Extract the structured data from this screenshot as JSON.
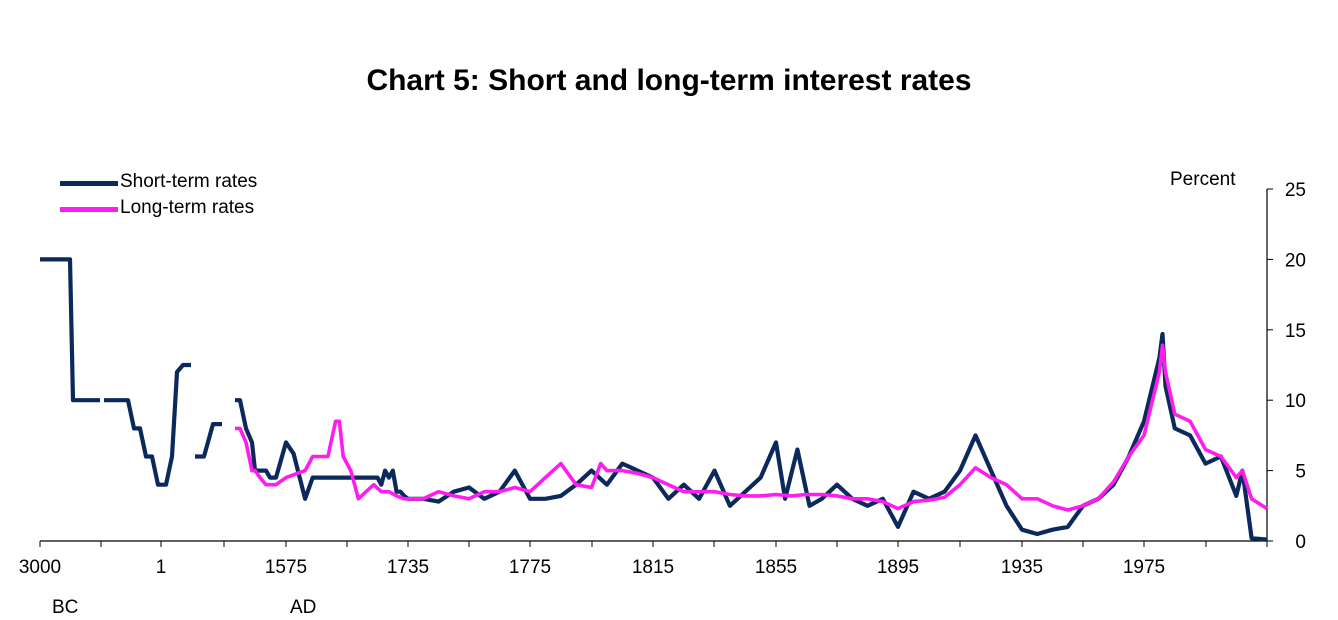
{
  "chart_data": {
    "type": "line",
    "title": "Chart 5: Short and long-term interest rates",
    "unit_label": "Percent",
    "xlabel": "",
    "ylabel": "",
    "ylim": [
      0,
      25
    ],
    "y_ticks": [
      "0",
      "5",
      "10",
      "15",
      "20",
      "25"
    ],
    "y_axis_side": "right",
    "x_ticks": [
      "3000",
      "1",
      "1575",
      "1735",
      "1775",
      "1815",
      "1855",
      "1895",
      "1935",
      "1975"
    ],
    "era_labels": [
      "BC",
      "AD"
    ],
    "grid": false,
    "legend_position": "top-left",
    "colors": {
      "short": "#0b2a5b",
      "long": "#ff1cf0"
    },
    "series": [
      {
        "name": "Short-term rates",
        "segments": [
          [
            [
              "3000 BC",
              20
            ],
            [
              "2800 BC",
              20
            ],
            [
              "2650 BC",
              20
            ],
            [
              "2500 BC",
              10
            ],
            [
              "2200 BC",
              10
            ]
          ],
          [
            [
              "1900 BC",
              10
            ],
            [
              "1700 BC",
              10
            ],
            [
              "1600 BC",
              8
            ],
            [
              "1500 BC",
              8
            ],
            [
              "1400 BC",
              6
            ],
            [
              "1300 BC",
              6
            ],
            [
              "1200 BC",
              4
            ],
            [
              "1100 BC",
              4
            ],
            [
              "1000 BC",
              6
            ],
            [
              "900 BC",
              12
            ],
            [
              "800 BC",
              12.5
            ],
            [
              "700 BC",
              12.5
            ]
          ],
          [
            [
              "AD 300",
              6
            ],
            [
              "AD 400",
              6
            ],
            [
              "AD 500",
              8.3
            ],
            [
              "AD 600",
              8.3
            ]
          ],
          [
            [
              "AD 1200",
              10
            ],
            [
              "1250",
              10
            ],
            [
              "1300",
              8
            ],
            [
              "1350",
              7
            ],
            [
              "1400",
              5
            ],
            [
              "1450",
              5
            ],
            [
              "1500",
              5
            ],
            [
              "1520",
              4.5
            ],
            [
              "1550",
              4.5
            ],
            [
              "1575",
              7
            ],
            [
              "1585",
              6.2
            ],
            [
              "1600",
              3
            ],
            [
              "1610",
              4.5
            ],
            [
              "1620",
              4.5
            ],
            [
              "1640",
              4.5
            ],
            [
              "1660",
              4.5
            ],
            [
              "1680",
              4.5
            ],
            [
              "1695",
              4.5
            ],
            [
              "1700",
              4
            ],
            [
              "1705",
              5
            ],
            [
              "1710",
              4.5
            ],
            [
              "1715",
              5
            ],
            [
              "1720",
              3.5
            ],
            [
              "1725",
              3.5
            ],
            [
              "1730",
              3.2
            ],
            [
              "1735",
              3
            ],
            [
              "1740",
              3
            ],
            [
              "1745",
              2.8
            ],
            [
              "1750",
              3.5
            ],
            [
              "1755",
              3.8
            ],
            [
              "1760",
              3
            ],
            [
              "1765",
              3.5
            ],
            [
              "1770",
              5
            ],
            [
              "1775",
              3
            ],
            [
              "1780",
              3
            ],
            [
              "1785",
              3.2
            ],
            [
              "1790",
              4
            ],
            [
              "1795",
              5
            ],
            [
              "1800",
              4
            ],
            [
              "1805",
              5.5
            ],
            [
              "1810",
              5
            ],
            [
              "1815",
              4.5
            ],
            [
              "1820",
              3
            ],
            [
              "1825",
              4
            ],
            [
              "1830",
              3
            ],
            [
              "1835",
              5
            ],
            [
              "1840",
              2.5
            ],
            [
              "1845",
              3.5
            ],
            [
              "1850",
              4.5
            ],
            [
              "1855",
              7
            ],
            [
              "1858",
              3
            ],
            [
              "1862",
              6.5
            ],
            [
              "1866",
              2.5
            ],
            [
              "1870",
              3
            ],
            [
              "1875",
              4
            ],
            [
              "1880",
              3
            ],
            [
              "1885",
              2.5
            ],
            [
              "1890",
              3
            ],
            [
              "1895",
              1
            ],
            [
              "1900",
              3.5
            ],
            [
              "1905",
              3
            ],
            [
              "1910",
              3.5
            ],
            [
              "1915",
              5
            ],
            [
              "1920",
              7.5
            ],
            [
              "1925",
              5
            ],
            [
              "1930",
              2.5
            ],
            [
              "1935",
              0.8
            ],
            [
              "1940",
              0.5
            ],
            [
              "1945",
              0.8
            ],
            [
              "1950",
              1
            ],
            [
              "1955",
              2.5
            ],
            [
              "1960",
              3
            ],
            [
              "1965",
              4
            ],
            [
              "1970",
              6
            ],
            [
              "1975",
              8.5
            ],
            [
              "1980",
              13
            ],
            [
              "1981",
              14.7
            ],
            [
              "1982",
              11
            ],
            [
              "1985",
              8
            ],
            [
              "1990",
              7.5
            ],
            [
              "1995",
              5.5
            ],
            [
              "2000",
              6
            ],
            [
              "2005",
              3.2
            ],
            [
              "2007",
              5
            ],
            [
              "2010",
              0.2
            ],
            [
              "2015",
              0.1
            ]
          ]
        ]
      },
      {
        "name": "Long-term rates",
        "segments": [
          [
            [
              "AD 1200",
              8
            ],
            [
              "1250",
              8
            ],
            [
              "1300",
              7
            ],
            [
              "1350",
              5
            ],
            [
              "1400",
              5
            ],
            [
              "1450",
              4.5
            ],
            [
              "1500",
              4
            ],
            [
              "1550",
              4
            ],
            [
              "1575",
              4.5
            ],
            [
              "1600",
              5
            ],
            [
              "1610",
              6
            ],
            [
              "1620",
              6
            ],
            [
              "1630",
              6
            ],
            [
              "1640",
              8.5
            ],
            [
              "1645",
              8.5
            ],
            [
              "1650",
              6
            ],
            [
              "1660",
              5
            ],
            [
              "1670",
              3
            ],
            [
              "1680",
              3.5
            ],
            [
              "1690",
              4
            ],
            [
              "1700",
              3.5
            ],
            [
              "1710",
              3.5
            ],
            [
              "1720",
              3.2
            ],
            [
              "1730",
              3
            ],
            [
              "1735",
              3
            ],
            [
              "1740",
              3
            ],
            [
              "1745",
              3.5
            ],
            [
              "1750",
              3.2
            ],
            [
              "1755",
              3
            ],
            [
              "1760",
              3.5
            ],
            [
              "1765",
              3.5
            ],
            [
              "1770",
              3.8
            ],
            [
              "1775",
              3.5
            ],
            [
              "1780",
              4.5
            ],
            [
              "1785",
              5.5
            ],
            [
              "1790",
              4
            ],
            [
              "1795",
              3.8
            ],
            [
              "1798",
              5.5
            ],
            [
              "1800",
              5
            ],
            [
              "1805",
              5
            ],
            [
              "1810",
              4.8
            ],
            [
              "1815",
              4.5
            ],
            [
              "1820",
              4
            ],
            [
              "1825",
              3.5
            ],
            [
              "1830",
              3.5
            ],
            [
              "1835",
              3.5
            ],
            [
              "1840",
              3.3
            ],
            [
              "1845",
              3.2
            ],
            [
              "1850",
              3.2
            ],
            [
              "1855",
              3.3
            ],
            [
              "1860",
              3.2
            ],
            [
              "1865",
              3.3
            ],
            [
              "1870",
              3.3
            ],
            [
              "1875",
              3.2
            ],
            [
              "1880",
              3
            ],
            [
              "1885",
              3
            ],
            [
              "1890",
              2.8
            ],
            [
              "1895",
              2.3
            ],
            [
              "1900",
              2.8
            ],
            [
              "1905",
              2.9
            ],
            [
              "1910",
              3.1
            ],
            [
              "1915",
              4
            ],
            [
              "1920",
              5.2
            ],
            [
              "1925",
              4.5
            ],
            [
              "1930",
              4
            ],
            [
              "1935",
              3
            ],
            [
              "1940",
              3
            ],
            [
              "1945",
              2.5
            ],
            [
              "1950",
              2.2
            ],
            [
              "1955",
              2.5
            ],
            [
              "1960",
              3
            ],
            [
              "1965",
              4.2
            ],
            [
              "1970",
              6
            ],
            [
              "1975",
              7.5
            ],
            [
              "1980",
              12
            ],
            [
              "1981",
              13.9
            ],
            [
              "1982",
              12
            ],
            [
              "1985",
              9
            ],
            [
              "1990",
              8.5
            ],
            [
              "1995",
              6.5
            ],
            [
              "2000",
              6
            ],
            [
              "2005",
              4.5
            ],
            [
              "2007",
              5
            ],
            [
              "2010",
              3
            ],
            [
              "2015",
              2.3
            ]
          ]
        ]
      }
    ]
  }
}
